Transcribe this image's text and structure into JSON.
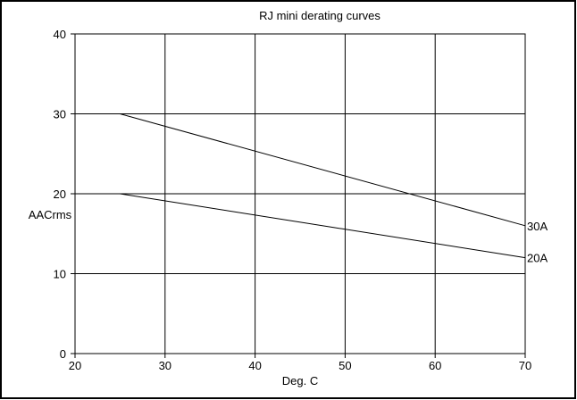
{
  "chart_data": {
    "type": "line",
    "title": "RJ mini derating curves",
    "xlabel": "Deg. C",
    "ylabel": "AACrms",
    "xlim": [
      20,
      70
    ],
    "ylim": [
      0,
      40
    ],
    "x_ticks": [
      20,
      30,
      40,
      50,
      60,
      70
    ],
    "y_ticks": [
      0,
      10,
      20,
      30,
      40
    ],
    "grid": true,
    "series": [
      {
        "name": "30A",
        "x": [
          20,
          25,
          70
        ],
        "y": [
          30,
          30,
          16
        ]
      },
      {
        "name": "20A",
        "x": [
          20,
          25,
          70
        ],
        "y": [
          20,
          20,
          12
        ]
      }
    ],
    "colors": {
      "line": "#000000",
      "grid": "#000000",
      "background": "#ffffff"
    }
  }
}
